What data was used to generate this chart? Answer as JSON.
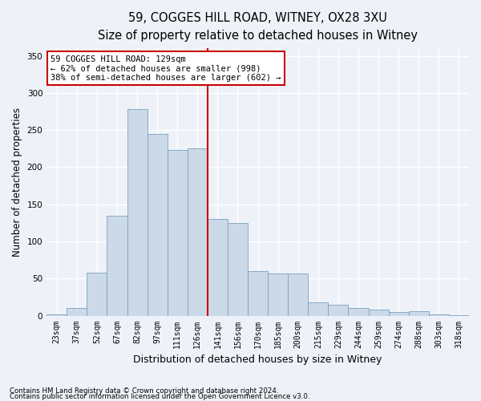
{
  "title_line1": "59, COGGES HILL ROAD, WITNEY, OX28 3XU",
  "title_line2": "Size of property relative to detached houses in Witney",
  "xlabel": "Distribution of detached houses by size in Witney",
  "ylabel": "Number of detached properties",
  "bar_color": "#ccd9e8",
  "bar_edge_color": "#7aa0c0",
  "categories": [
    "23sqm",
    "37sqm",
    "52sqm",
    "67sqm",
    "82sqm",
    "97sqm",
    "111sqm",
    "126sqm",
    "141sqm",
    "156sqm",
    "170sqm",
    "185sqm",
    "200sqm",
    "215sqm",
    "229sqm",
    "244sqm",
    "259sqm",
    "274sqm",
    "288sqm",
    "303sqm",
    "318sqm"
  ],
  "values": [
    2,
    10,
    58,
    135,
    278,
    245,
    223,
    225,
    130,
    125,
    60,
    57,
    57,
    18,
    15,
    10,
    8,
    5,
    6,
    2,
    1
  ],
  "red_line_x": 7.5,
  "annotation_title": "59 COGGES HILL ROAD: 129sqm",
  "annotation_line2": "← 62% of detached houses are smaller (998)",
  "annotation_line3": "38% of semi-detached houses are larger (602) →",
  "red_line_color": "#cc0000",
  "annotation_box_facecolor": "#ffffff",
  "annotation_box_edgecolor": "#cc0000",
  "ylim": [
    0,
    360
  ],
  "yticks": [
    0,
    50,
    100,
    150,
    200,
    250,
    300,
    350
  ],
  "footnote1": "Contains HM Land Registry data © Crown copyright and database right 2024.",
  "footnote2": "Contains public sector information licensed under the Open Government Licence v3.0.",
  "background_color": "#eef2f8",
  "grid_color": "#ffffff",
  "title_fontsize": 10.5,
  "subtitle_fontsize": 9.5,
  "ylabel_fontsize": 8.5,
  "xlabel_fontsize": 9,
  "tick_fontsize": 7,
  "annot_fontsize": 7.5,
  "footnote_fontsize": 6.2
}
